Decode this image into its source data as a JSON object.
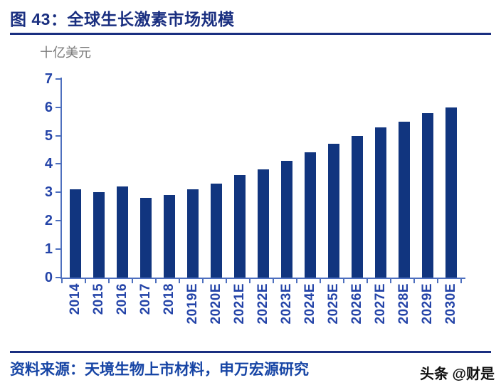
{
  "header": {
    "title": "图 43：全球生长激素市场规模"
  },
  "chart_data": {
    "type": "bar",
    "title": "图 43：全球生长激素市场规模",
    "ylabel": "十亿美元",
    "xlabel": "",
    "categories": [
      "2014",
      "2015",
      "2016",
      "2017",
      "2018",
      "2019E",
      "2020E",
      "2021E",
      "2022E",
      "2023E",
      "2024E",
      "2025E",
      "2026E",
      "2027E",
      "2028E",
      "2029E",
      "2030E"
    ],
    "values": [
      3.1,
      3.0,
      3.2,
      2.8,
      2.9,
      3.1,
      3.3,
      3.6,
      3.8,
      4.1,
      4.4,
      4.7,
      5.0,
      5.3,
      5.5,
      5.8,
      6.0
    ],
    "ylim": [
      0,
      7
    ],
    "yticks": [
      0,
      1,
      2,
      3,
      4,
      5,
      6,
      7
    ],
    "grid": false,
    "legend": null
  },
  "footer": {
    "source": "资料来源：天境生物上市材料，申万宏源研究",
    "watermark": "头条 @财是"
  },
  "colors": {
    "bg": "#ffffff",
    "bar": "#11357f",
    "axis": "#4d6fbe",
    "ticktext": "#2444a8",
    "title": "#1a2f80",
    "source": "#1745a5",
    "unit": "#7a7a7a",
    "watermark": "#111111"
  }
}
